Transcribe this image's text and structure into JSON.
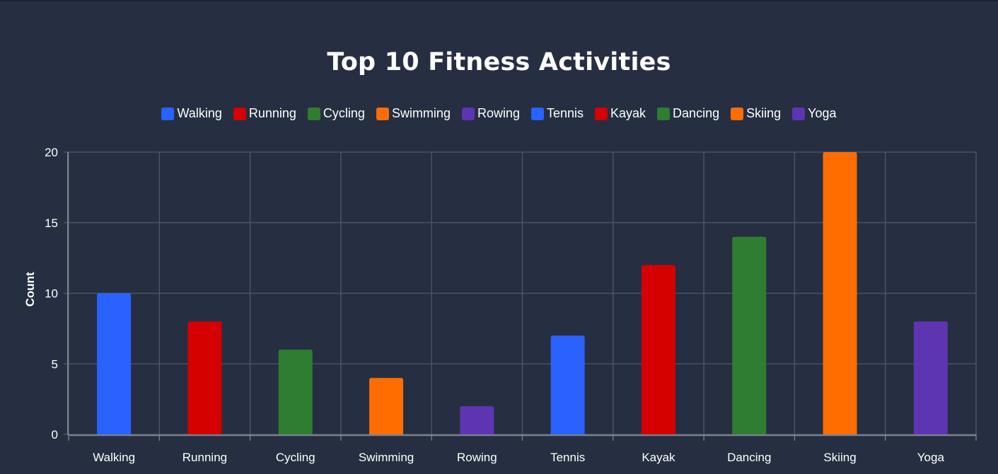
{
  "chart_data": {
    "type": "bar",
    "title": "Top 10 Fitness Activities",
    "xlabel": "",
    "ylabel": "Count",
    "ylim": [
      0,
      20
    ],
    "yticks": [
      0,
      5,
      10,
      15,
      20
    ],
    "grid": true,
    "legend_position": "top",
    "categories": [
      "Walking",
      "Running",
      "Cycling",
      "Swimming",
      "Rowing",
      "Tennis",
      "Kayak",
      "Dancing",
      "Skiing",
      "Yoga"
    ],
    "values": [
      10,
      8,
      6,
      4,
      2,
      7,
      12,
      14,
      20,
      8
    ],
    "colors": [
      "#2962ff",
      "#d50000",
      "#2e7d32",
      "#ff6d00",
      "#5e35b1",
      "#2962ff",
      "#d50000",
      "#2e7d32",
      "#ff6d00",
      "#5e35b1"
    ]
  },
  "theme": {
    "background": "#252f41",
    "grid_color": "#4f5869",
    "axis_color": "#7b8291",
    "text_color": "#ffffff"
  }
}
